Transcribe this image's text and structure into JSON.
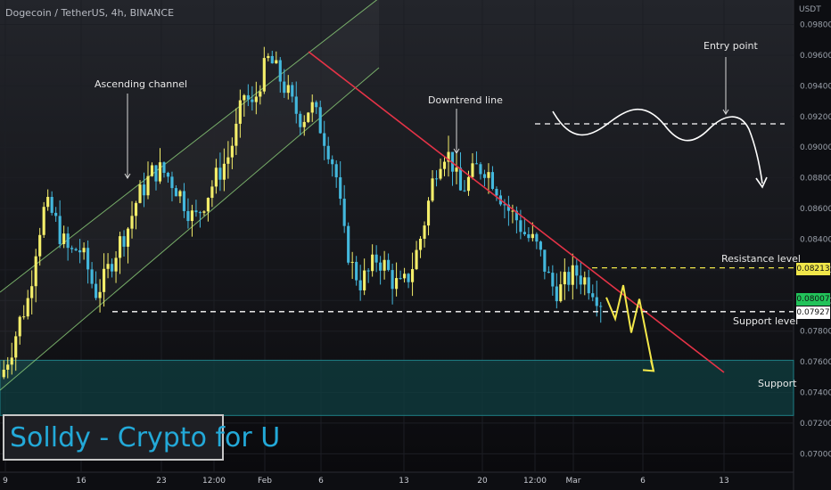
{
  "header": {
    "symbol": "Dogecoin / TetherUS, 4h, BINANCE",
    "currency": "USDT"
  },
  "brand": {
    "text": "Solldy - Crypto for U"
  },
  "annotations": {
    "ascending_channel": "Ascending channel",
    "downtrend_line": "Downtrend line",
    "entry_point": "Entry point",
    "resistance_level": "Resistance level",
    "support_level": "Support level",
    "support": "Support"
  },
  "price_labels": {
    "resistance": "0.08213",
    "current": "0.08007",
    "support": "0.07927"
  },
  "colors": {
    "background": "#0a0a0d",
    "candle_up": "#f4ee6a",
    "candle_down": "#43b8dd",
    "trendline": "#e53347",
    "channel": "#8fd27a",
    "resistance_dash": "#f0e64a",
    "support_dash": "#ffffff",
    "support_zone": "#0f3d40",
    "current_price": "#22c35a",
    "brand_text": "#23a9d8"
  },
  "chart_data": {
    "type": "candlestick",
    "y_axis": {
      "ylim": [
        0.0688,
        0.0996
      ],
      "ticks": [
        "0.07000",
        "0.07200",
        "0.07400",
        "0.07600",
        "0.07800",
        "0.08000",
        "0.08200",
        "0.08400",
        "0.08600",
        "0.08800",
        "0.09000",
        "0.09200",
        "0.09400",
        "0.09600",
        "0.09800"
      ]
    },
    "x_axis": {
      "ticks": [
        "9",
        "16",
        "23",
        "12:00",
        "Feb",
        "6",
        "13",
        "20",
        "12:00",
        "Mar",
        "6",
        "13"
      ]
    },
    "levels": {
      "resistance": 0.08213,
      "support": 0.07927
    },
    "support_zone": [
      0.0725,
      0.0761
    ],
    "close_path": [
      0.0755,
      0.077,
      0.0788,
      0.0802,
      0.084,
      0.0862,
      0.0855,
      0.084,
      0.083,
      0.0835,
      0.0823,
      0.0805,
      0.0812,
      0.0826,
      0.0838,
      0.0848,
      0.0865,
      0.0875,
      0.0884,
      0.0885,
      0.088,
      0.0872,
      0.0862,
      0.0852,
      0.0863,
      0.0874,
      0.0884,
      0.0893,
      0.091,
      0.0935,
      0.0925,
      0.0945,
      0.0958,
      0.0948,
      0.0938,
      0.0925,
      0.0918,
      0.0928,
      0.0916,
      0.0902,
      0.0885,
      0.0843,
      0.0822,
      0.0812,
      0.0818,
      0.0828,
      0.0822,
      0.0812,
      0.0808,
      0.0818,
      0.0835,
      0.0858,
      0.0885,
      0.0898,
      0.0892,
      0.087,
      0.0878,
      0.0886,
      0.0887,
      0.0879,
      0.0868,
      0.0858,
      0.0852,
      0.0842,
      0.0838,
      0.0826,
      0.081,
      0.0806,
      0.0814,
      0.0818,
      0.0814,
      0.0809,
      0.08
    ],
    "forecast_path": [
      0.0802,
      0.0788,
      0.081,
      0.0779,
      0.0801,
      0.0754
    ]
  }
}
